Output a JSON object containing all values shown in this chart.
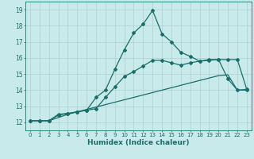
{
  "xlabel": "Humidex (Indice chaleur)",
  "background_color": "#c8eaea",
  "grid_color": "#b0cece",
  "line_color": "#1a6e6a",
  "xlim": [
    -0.5,
    23.5
  ],
  "ylim": [
    11.5,
    19.5
  ],
  "x_ticks": [
    0,
    1,
    2,
    3,
    4,
    5,
    6,
    7,
    8,
    9,
    10,
    11,
    12,
    13,
    14,
    15,
    16,
    17,
    18,
    19,
    20,
    21,
    22,
    23
  ],
  "y_ticks": [
    12,
    13,
    14,
    15,
    16,
    17,
    18,
    19
  ],
  "line1_x": [
    0,
    1,
    2,
    3,
    4,
    5,
    6,
    7,
    8,
    9,
    10,
    11,
    12,
    13,
    14,
    15,
    16,
    17,
    18,
    19,
    20,
    21,
    22,
    23
  ],
  "line1_y": [
    12.1,
    12.1,
    12.1,
    12.45,
    12.55,
    12.65,
    12.75,
    13.55,
    14.0,
    15.3,
    16.5,
    17.55,
    18.1,
    18.95,
    17.5,
    17.0,
    16.35,
    16.1,
    15.8,
    15.9,
    15.9,
    14.7,
    14.0,
    14.0
  ],
  "line2_x": [
    0,
    1,
    2,
    3,
    4,
    5,
    6,
    7,
    8,
    9,
    10,
    11,
    12,
    13,
    14,
    15,
    16,
    17,
    18,
    19,
    20,
    21,
    22,
    23
  ],
  "line2_y": [
    12.1,
    12.1,
    12.1,
    12.5,
    12.55,
    12.65,
    12.75,
    12.85,
    13.55,
    14.2,
    14.85,
    15.15,
    15.5,
    15.85,
    15.85,
    15.7,
    15.55,
    15.7,
    15.8,
    15.85,
    15.9,
    15.9,
    15.9,
    14.05
  ],
  "line3_x": [
    0,
    1,
    2,
    3,
    4,
    5,
    6,
    7,
    8,
    9,
    10,
    11,
    12,
    13,
    14,
    15,
    16,
    17,
    18,
    19,
    20,
    21,
    22,
    23
  ],
  "line3_y": [
    12.1,
    12.1,
    12.1,
    12.3,
    12.5,
    12.65,
    12.8,
    12.95,
    13.1,
    13.25,
    13.4,
    13.55,
    13.7,
    13.85,
    14.0,
    14.15,
    14.3,
    14.45,
    14.6,
    14.75,
    14.9,
    14.95,
    14.0,
    14.05
  ],
  "tick_fontsize": 5.0,
  "xlabel_fontsize": 6.5,
  "marker_size": 2.0,
  "linewidth": 0.9
}
